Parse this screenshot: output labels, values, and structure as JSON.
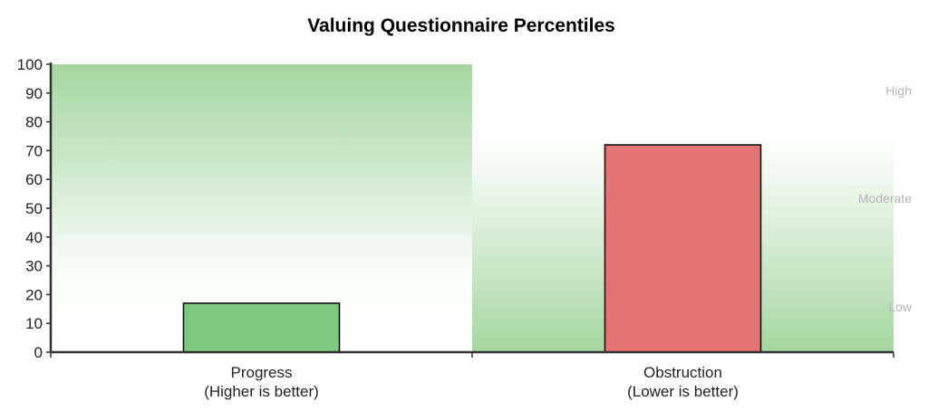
{
  "chart_data": {
    "type": "bar",
    "title": "Valuing Questionnaire Percentiles",
    "categories": [
      {
        "line1": "Progress",
        "line2": "(Higher is better)"
      },
      {
        "line1": "Obstruction",
        "line2": "(Lower is better)"
      }
    ],
    "values": [
      17,
      72
    ],
    "bar_colors": [
      "#7fc97f",
      "#e57373"
    ],
    "ylim": [
      0,
      100
    ],
    "yticks": [
      "0",
      "10",
      "20",
      "30",
      "40",
      "50",
      "60",
      "70",
      "80",
      "90",
      "100"
    ],
    "band_labels": [
      "High",
      "Moderate",
      "Low"
    ],
    "background_gradient_color": "#a5d6a0",
    "grid": false
  }
}
